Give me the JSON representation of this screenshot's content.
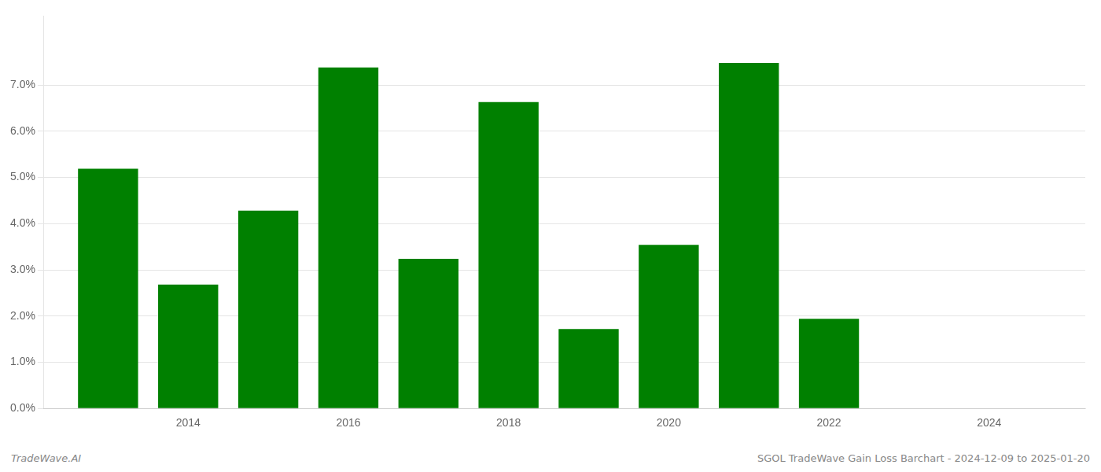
{
  "chart_data": {
    "type": "bar",
    "x": [
      2013,
      2014,
      2015,
      2016,
      2017,
      2018,
      2019,
      2020,
      2021,
      2022,
      2023
    ],
    "values": [
      0.0519,
      0.0268,
      0.0428,
      0.0738,
      0.0324,
      0.0663,
      0.0172,
      0.0354,
      0.0748,
      0.0194,
      0.0
    ],
    "color": "#008000",
    "xlim": [
      2012.2,
      2025.2
    ],
    "xticks": [
      2014,
      2016,
      2018,
      2020,
      2022,
      2024
    ],
    "ylim": [
      0.0,
      0.085
    ],
    "yticks": [
      {
        "value": 0.0,
        "label": "0.0%"
      },
      {
        "value": 0.01,
        "label": "1.0%"
      },
      {
        "value": 0.02,
        "label": "2.0%"
      },
      {
        "value": 0.03,
        "label": "3.0%"
      },
      {
        "value": 0.04,
        "label": "4.0%"
      },
      {
        "value": 0.05,
        "label": "5.0%"
      },
      {
        "value": 0.06,
        "label": "6.0%"
      },
      {
        "value": 0.07,
        "label": "7.0%"
      }
    ],
    "grid": "y",
    "annotations": [
      "TradeWave.AI",
      "SGOL TradeWave Gain Loss Barchart - 2024-12-09 to 2025-01-20"
    ]
  }
}
